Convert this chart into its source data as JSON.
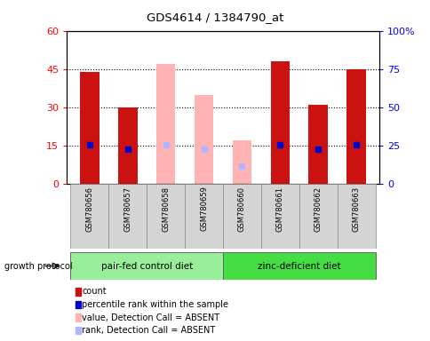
{
  "title": "GDS4614 / 1384790_at",
  "samples": [
    "GSM780656",
    "GSM780657",
    "GSM780658",
    "GSM780659",
    "GSM780660",
    "GSM780661",
    "GSM780662",
    "GSM780663"
  ],
  "count_values": [
    44,
    30,
    null,
    null,
    null,
    48,
    31,
    45
  ],
  "rank_values": [
    15.5,
    13.5,
    null,
    null,
    null,
    15.5,
    13.5,
    15.5
  ],
  "absent_value_values": [
    null,
    null,
    47,
    35,
    17,
    null,
    null,
    null
  ],
  "absent_rank_values": [
    null,
    null,
    15.5,
    13.5,
    7,
    null,
    null,
    null
  ],
  "detection_absent": [
    false,
    false,
    true,
    true,
    true,
    false,
    false,
    false
  ],
  "ylim_left": [
    0,
    60
  ],
  "ylim_right": [
    0,
    100
  ],
  "yticks_left": [
    0,
    15,
    30,
    45,
    60
  ],
  "ytick_labels_left": [
    "0",
    "15",
    "30",
    "45",
    "60"
  ],
  "ytick_labels_right": [
    "0",
    "25",
    "50",
    "75",
    "100%"
  ],
  "group1_label": "pair-fed control diet",
  "group2_label": "zinc-deficient diet",
  "group1_indices": [
    0,
    1,
    2,
    3
  ],
  "group2_indices": [
    4,
    5,
    6,
    7
  ],
  "protocol_label": "growth protocol",
  "legend_items": [
    {
      "label": "count",
      "color": "#cc0000"
    },
    {
      "label": "percentile rank within the sample",
      "color": "#0000cc"
    },
    {
      "label": "value, Detection Call = ABSENT",
      "color": "#ffb3b3"
    },
    {
      "label": "rank, Detection Call = ABSENT",
      "color": "#b3b3ff"
    }
  ],
  "bar_width": 0.5,
  "dark_red": "#cc1111",
  "pink": "#ffb3b3",
  "dark_blue": "#0000cc",
  "light_blue": "#b3b3ff",
  "bg_color": "#d4d4d4",
  "group1_color": "#99ee99",
  "group2_color": "#44dd44"
}
